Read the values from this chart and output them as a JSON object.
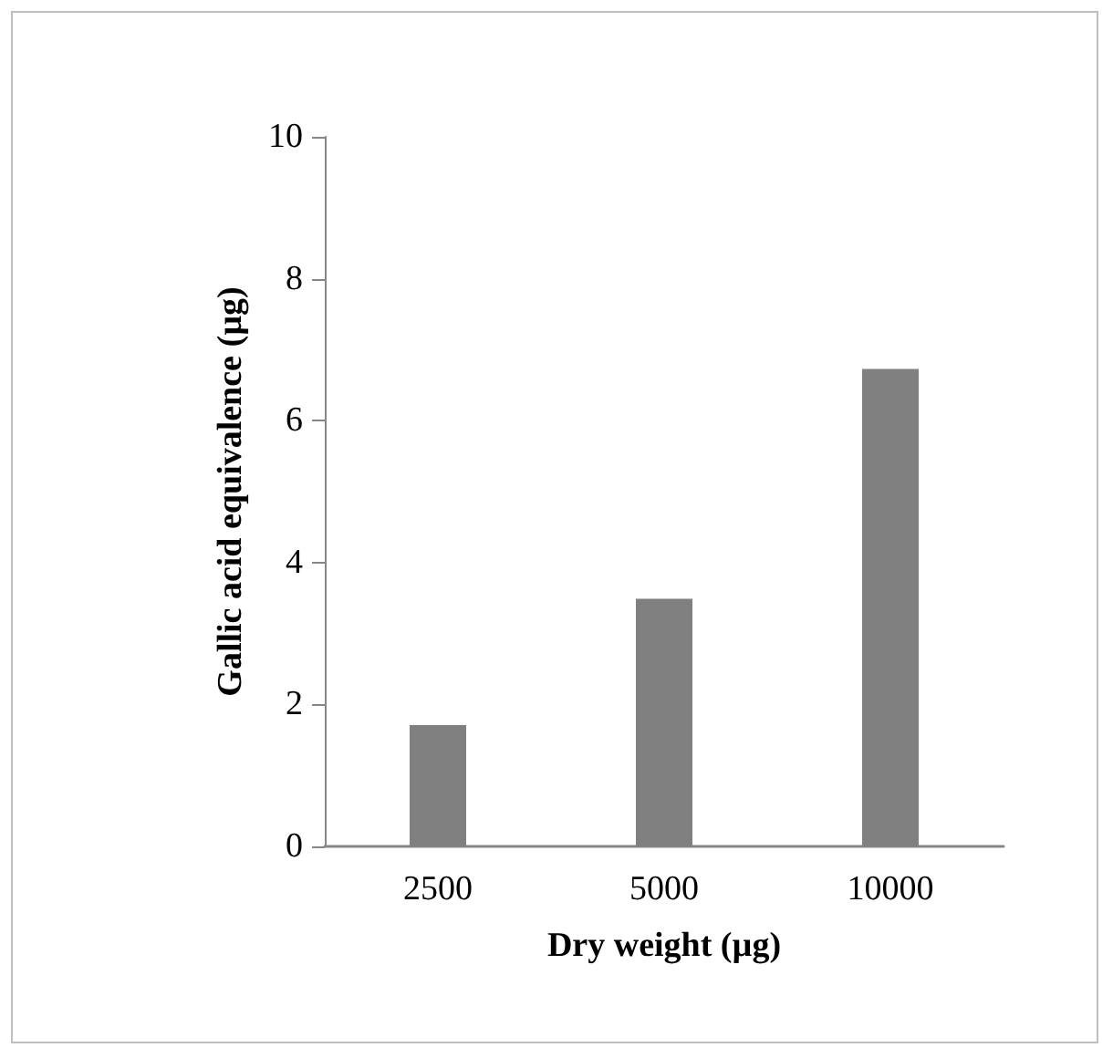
{
  "chart_data": {
    "type": "bar",
    "xlabel": "Dry weight (µg)",
    "ylabel": "Gallic acid equivalence (µg)",
    "categories": [
      "2500",
      "5000",
      "10000"
    ],
    "values": [
      1.71,
      3.49,
      6.73
    ],
    "color": "#808080",
    "ylim": [
      0,
      10
    ],
    "yticks": [
      0,
      2,
      4,
      6,
      8,
      10
    ],
    "grid": false
  }
}
